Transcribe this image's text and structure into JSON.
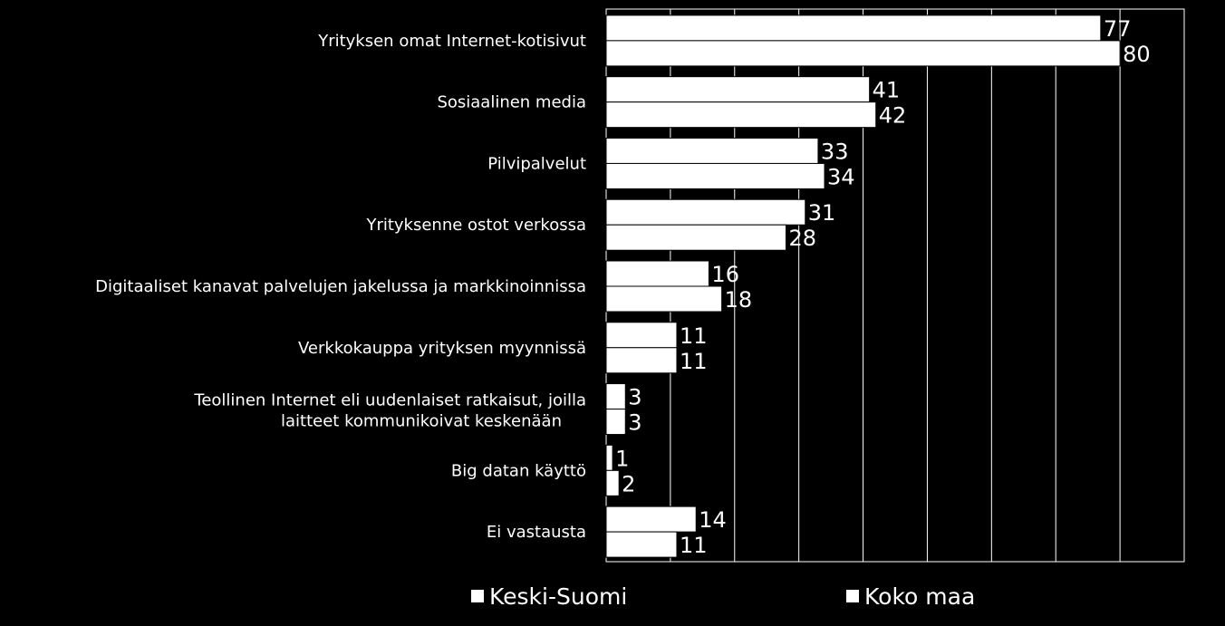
{
  "chart_data": {
    "type": "bar",
    "orientation": "horizontal",
    "categories": [
      "Yrityksen omat Internet-kotisivut",
      "Sosiaalinen media",
      "Pilvipalvelut",
      "Yrityksenne ostot verkossa",
      "Digitaaliset kanavat palvelujen jakelussa ja markkinoinnissa",
      "Verkkokauppa yrityksen myynnissä",
      "Teollinen Internet eli uudenlaiset ratkaisut, joilla laitteet kommunikoivat keskenään",
      "Big datan käyttö",
      "Ei vastausta"
    ],
    "series": [
      {
        "name": "Keski-Suomi",
        "values": [
          77,
          41,
          33,
          31,
          16,
          11,
          3,
          1,
          14
        ]
      },
      {
        "name": "Koko maa",
        "values": [
          80,
          42,
          34,
          28,
          18,
          11,
          3,
          2,
          11
        ]
      }
    ],
    "xlim": [
      0,
      90
    ],
    "grid": "vertical",
    "legend": "bottom",
    "colors": {
      "background": "#000000",
      "bar": "#ffffff",
      "bar_edge": "#000000",
      "grid": "#ffffff"
    }
  }
}
